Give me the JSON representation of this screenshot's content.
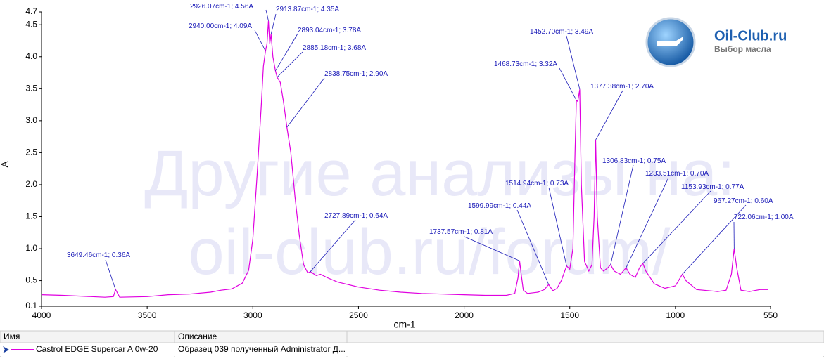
{
  "chart_data": {
    "type": "line",
    "x_label": "cm-1",
    "y_label": "A",
    "xlim": [
      4000,
      550
    ],
    "xticks": [
      4000,
      3500,
      3000,
      2500,
      2000,
      1500,
      1000,
      550
    ],
    "ylim": [
      0.1,
      4.7
    ],
    "yticks": [
      0.1,
      0.5,
      {
        "value": 1,
        "label": "1.0"
      },
      1.5,
      {
        "value": 2,
        "label": "2.0"
      },
      2.5,
      {
        "value": 3,
        "label": "3.0"
      },
      3.5,
      {
        "value": 4,
        "label": "4.0"
      },
      4.5,
      4.7
    ],
    "x": [
      4000,
      3900,
      3700,
      3660,
      3649.46,
      3630,
      3500,
      3400,
      3300,
      3200,
      3150,
      3100,
      3050,
      3020,
      3000,
      2980,
      2960,
      2950,
      2940,
      2933,
      2926.07,
      2920,
      2913.87,
      2905,
      2893.04,
      2885.18,
      2870,
      2855,
      2838.75,
      2820,
      2800,
      2780,
      2760,
      2740,
      2727.89,
      2700,
      2680,
      2650,
      2600,
      2500,
      2400,
      2300,
      2200,
      2100,
      2000,
      1900,
      1800,
      1760,
      1745,
      1737.57,
      1730,
      1720,
      1700,
      1650,
      1620,
      1599.99,
      1580,
      1560,
      1540,
      1514.94,
      1500,
      1485,
      1475,
      1468.73,
      1462,
      1452.7,
      1445,
      1430,
      1410,
      1395,
      1385,
      1377.38,
      1370,
      1355,
      1340,
      1320,
      1306.83,
      1290,
      1260,
      1233.51,
      1215,
      1190,
      1170,
      1153.93,
      1140,
      1100,
      1050,
      1000,
      967.27,
      950,
      900,
      800,
      760,
      735,
      722.06,
      710,
      690,
      650,
      600,
      560
    ],
    "series": [
      {
        "name": "Castrol EDGE Supercar A 0w-20",
        "color": "#e000e0",
        "values": [
          0.28,
          0.27,
          0.24,
          0.25,
          0.36,
          0.24,
          0.25,
          0.28,
          0.29,
          0.32,
          0.35,
          0.37,
          0.46,
          0.66,
          1.15,
          2.14,
          3.24,
          3.85,
          4.09,
          4.2,
          4.56,
          4.2,
          4.35,
          4.0,
          3.78,
          3.68,
          3.6,
          3.3,
          2.9,
          2.5,
          1.8,
          1.2,
          0.75,
          0.62,
          0.64,
          0.58,
          0.6,
          0.55,
          0.48,
          0.4,
          0.35,
          0.32,
          0.3,
          0.29,
          0.28,
          0.27,
          0.27,
          0.3,
          0.55,
          0.81,
          0.6,
          0.35,
          0.3,
          0.32,
          0.36,
          0.44,
          0.34,
          0.38,
          0.5,
          0.73,
          0.68,
          1.0,
          2.5,
          3.32,
          3.3,
          3.49,
          2.0,
          0.8,
          0.65,
          0.75,
          1.5,
          2.7,
          1.5,
          0.7,
          0.65,
          0.7,
          0.75,
          0.65,
          0.6,
          0.7,
          0.6,
          0.55,
          0.7,
          0.77,
          0.65,
          0.45,
          0.38,
          0.42,
          0.6,
          0.5,
          0.36,
          0.33,
          0.35,
          0.6,
          1.0,
          0.7,
          0.35,
          0.33,
          0.36,
          0.36
        ]
      }
    ],
    "annotations": [
      {
        "label": "3649.46cm-1; 0.36A",
        "x": 3649.46,
        "y": 0.36
      },
      {
        "label": "2940.00cm-1; 4.09A",
        "x": 2940,
        "y": 4.09
      },
      {
        "label": "2926.07cm-1; 4.56A",
        "x": 2926.07,
        "y": 4.56
      },
      {
        "label": "2913.87cm-1; 4.35A",
        "x": 2913.87,
        "y": 4.35
      },
      {
        "label": "2893.04cm-1; 3.78A",
        "x": 2893.04,
        "y": 3.78
      },
      {
        "label": "2885.18cm-1; 3.68A",
        "x": 2885.18,
        "y": 3.68
      },
      {
        "label": "2838.75cm-1; 2.90A",
        "x": 2838.75,
        "y": 2.9
      },
      {
        "label": "2727.89cm-1; 0.64A",
        "x": 2727.89,
        "y": 0.64
      },
      {
        "label": "1737.57cm-1; 0.81A",
        "x": 1737.57,
        "y": 0.81
      },
      {
        "label": "1599.99cm-1; 0.44A",
        "x": 1599.99,
        "y": 0.44
      },
      {
        "label": "1514.94cm-1; 0.73A",
        "x": 1514.94,
        "y": 0.73
      },
      {
        "label": "1468.73cm-1; 3.32A",
        "x": 1468.73,
        "y": 3.32
      },
      {
        "label": "1452.70cm-1; 3.49A",
        "x": 1452.7,
        "y": 3.49
      },
      {
        "label": "1377.38cm-1; 2.70A",
        "x": 1377.38,
        "y": 2.7
      },
      {
        "label": "1306.83cm-1; 0.75A",
        "x": 1306.83,
        "y": 0.75
      },
      {
        "label": "1233.51cm-1; 0.70A",
        "x": 1233.51,
        "y": 0.7
      },
      {
        "label": "1153.93cm-1; 0.77A",
        "x": 1153.93,
        "y": 0.77
      },
      {
        "label": "967.27cm-1; 0.60A",
        "x": 967.27,
        "y": 0.6
      },
      {
        "label": "722.06cm-1; 1.00A",
        "x": 722.06,
        "y": 1.0
      }
    ]
  },
  "watermark": [
    "Другие анализы на:",
    "oil-club.ru/forum/"
  ],
  "logo": {
    "title": "Oil-Club.ru",
    "subtitle": "Выбор масла"
  },
  "legend_table": {
    "headers": [
      "Имя",
      "Описание"
    ],
    "descriptions": [
      "Образец 039 полученный Administrator Д..."
    ]
  }
}
